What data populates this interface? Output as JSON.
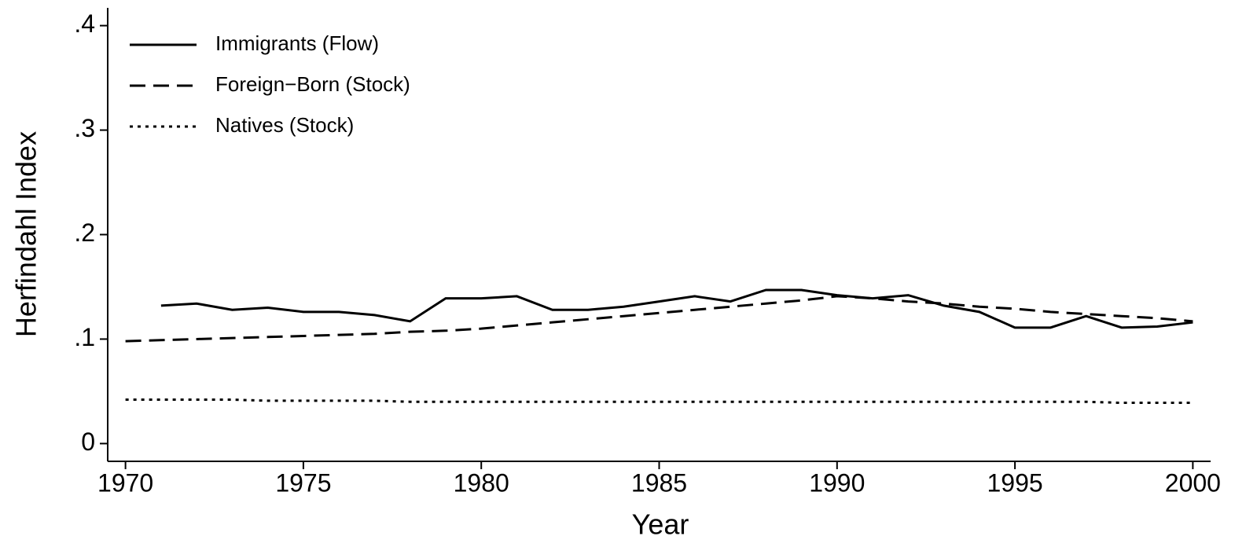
{
  "chart_data": {
    "type": "line",
    "xlabel": "Year",
    "ylabel": "Herfindahl Index",
    "x": [
      1970,
      1971,
      1972,
      1973,
      1974,
      1975,
      1976,
      1977,
      1978,
      1979,
      1980,
      1981,
      1982,
      1983,
      1984,
      1985,
      1986,
      1987,
      1988,
      1989,
      1990,
      1991,
      1992,
      1993,
      1994,
      1995,
      1996,
      1997,
      1998,
      1999,
      2000
    ],
    "series": [
      {
        "name": "Immigrants (Flow)",
        "color": "#000000",
        "style": "solid",
        "values": [
          null,
          0.132,
          0.134,
          0.128,
          0.13,
          0.126,
          0.126,
          0.123,
          0.117,
          0.139,
          0.139,
          0.141,
          0.128,
          0.128,
          0.131,
          0.136,
          0.141,
          0.136,
          0.147,
          0.147,
          0.142,
          0.139,
          0.142,
          0.132,
          0.126,
          0.111,
          0.111,
          0.122,
          0.111,
          0.112,
          0.116
        ]
      },
      {
        "name": "Foreign−Born (Stock)",
        "color": "#000000",
        "style": "dashed",
        "values": [
          0.098,
          0.099,
          0.1,
          0.101,
          0.102,
          0.103,
          0.104,
          0.105,
          0.107,
          0.108,
          0.11,
          0.113,
          0.116,
          0.119,
          0.122,
          0.125,
          0.128,
          0.131,
          0.134,
          0.137,
          0.141,
          0.139,
          0.136,
          0.134,
          0.131,
          0.129,
          0.126,
          0.124,
          0.122,
          0.12,
          0.117
        ]
      },
      {
        "name": "Natives (Stock)",
        "color": "#000000",
        "style": "dotted",
        "values": [
          0.042,
          0.042,
          0.042,
          0.042,
          0.041,
          0.041,
          0.041,
          0.041,
          0.04,
          0.04,
          0.04,
          0.04,
          0.04,
          0.04,
          0.04,
          0.04,
          0.04,
          0.04,
          0.04,
          0.04,
          0.04,
          0.04,
          0.04,
          0.04,
          0.04,
          0.04,
          0.04,
          0.04,
          0.039,
          0.039,
          0.039
        ]
      }
    ],
    "xlim": [
      1969.5,
      2000.5
    ],
    "xticks": [
      1970,
      1975,
      1980,
      1985,
      1990,
      1995,
      2000
    ],
    "ylim": [
      -0.017,
      0.417
    ],
    "yticks": [
      0,
      {
        "value": 0.1,
        "label": ".1"
      },
      {
        "value": 0.2,
        "label": ".2"
      },
      {
        "value": 0.3,
        "label": ".3"
      },
      {
        "value": 0.4,
        "label": ".4"
      }
    ],
    "legend": "upper-left"
  }
}
